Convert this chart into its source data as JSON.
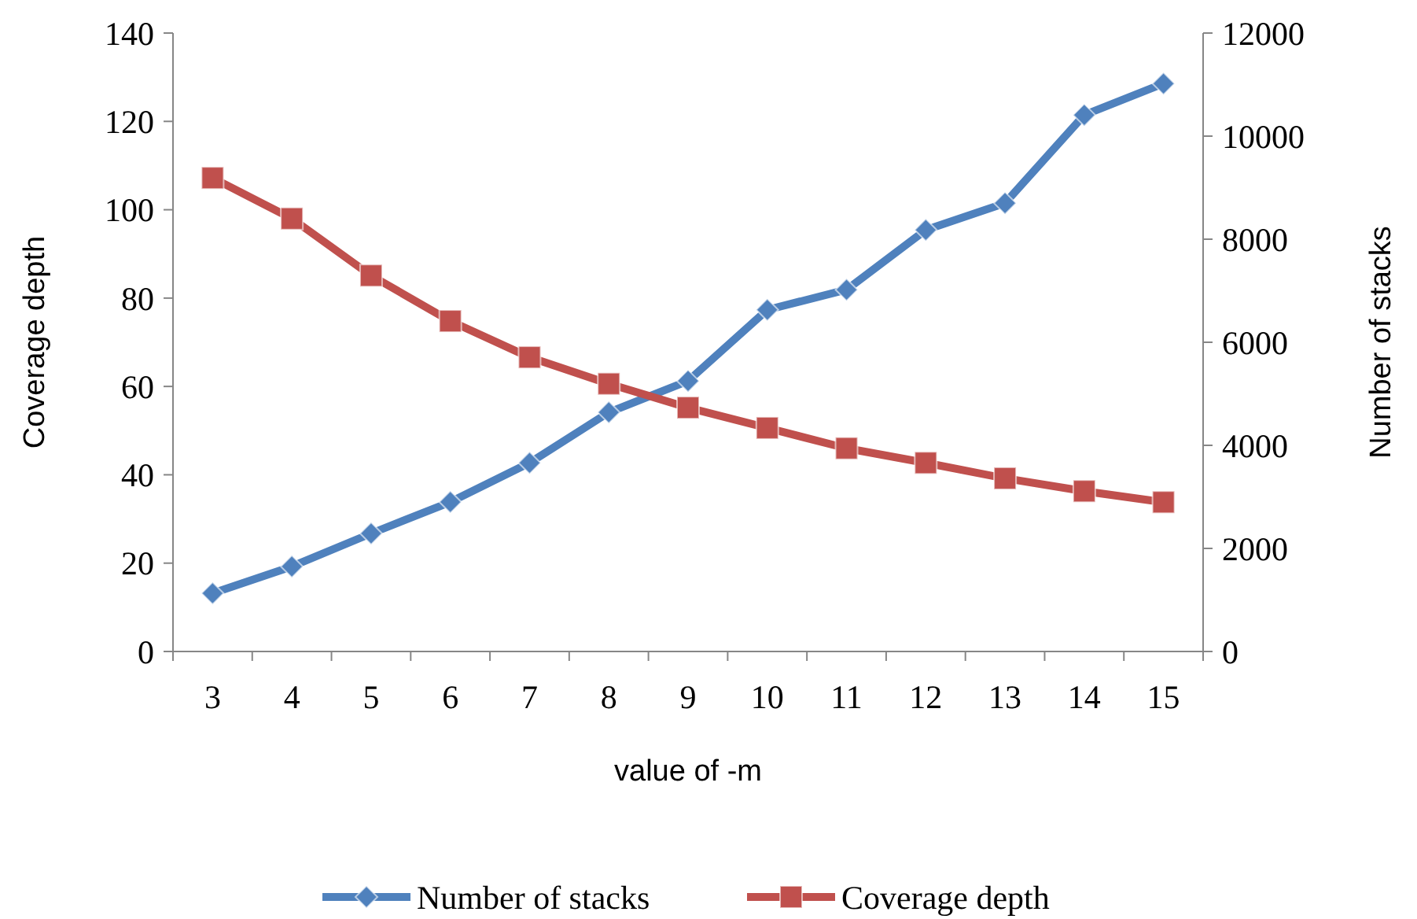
{
  "chart_data": {
    "type": "line",
    "xlabel": "value of -m",
    "ylabel": "Coverage depth",
    "y2label": "Number of stacks",
    "categories": [
      "3",
      "4",
      "5",
      "6",
      "7",
      "8",
      "9",
      "10",
      "11",
      "12",
      "13",
      "14",
      "15"
    ],
    "series": [
      {
        "name": "Number of stacks",
        "color": "#4f81bd",
        "axis": "y2",
        "marker": "diamond",
        "values": [
          1130,
          1650,
          2290,
          2900,
          3660,
          4640,
          5250,
          6630,
          7020,
          8180,
          8700,
          10410,
          11020
        ]
      },
      {
        "name": "Coverage depth",
        "color": "#c0504d",
        "marker": "square",
        "values": [
          107.2,
          98,
          85.1,
          74.8,
          66.6,
          60.6,
          55.2,
          50.6,
          46,
          42.7,
          39.2,
          36.3,
          33.8
        ]
      }
    ],
    "ylim": [
      0,
      140
    ],
    "yticks": [
      0,
      20,
      40,
      60,
      80,
      100,
      120,
      140
    ],
    "y2lim": [
      0,
      12000
    ],
    "y2ticks": [
      0,
      2000,
      4000,
      6000,
      8000,
      10000,
      12000
    ],
    "grid": false,
    "legend": "bottom",
    "line_style": "solid"
  }
}
